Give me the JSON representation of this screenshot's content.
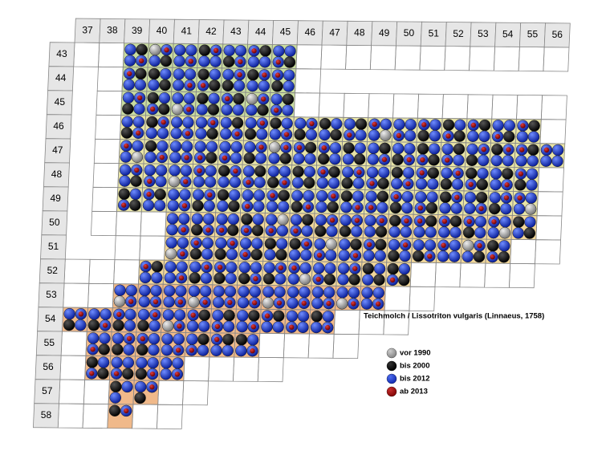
{
  "map": {
    "title": "Teichmolch / Lissotriton vulgaris (Linnaeus, 1758)",
    "columns": [
      "37",
      "38",
      "39",
      "40",
      "41",
      "42",
      "43",
      "44",
      "45",
      "46",
      "47",
      "48",
      "49",
      "50",
      "51",
      "52",
      "53",
      "54",
      "55",
      "56"
    ],
    "rows": [
      "43",
      "44",
      "45",
      "46",
      "47",
      "48",
      "49",
      "50",
      "51",
      "52",
      "53",
      "54",
      "55",
      "56",
      "57",
      "58"
    ],
    "legend": [
      {
        "label": "vor 1990",
        "color": "#9a9a9a"
      },
      {
        "label": "bis 2000",
        "color": "#000000"
      },
      {
        "label": "bis 2012",
        "color": "#1f3fd6"
      },
      {
        "label": "ab 2013",
        "color": "#a01010"
      }
    ]
  }
}
